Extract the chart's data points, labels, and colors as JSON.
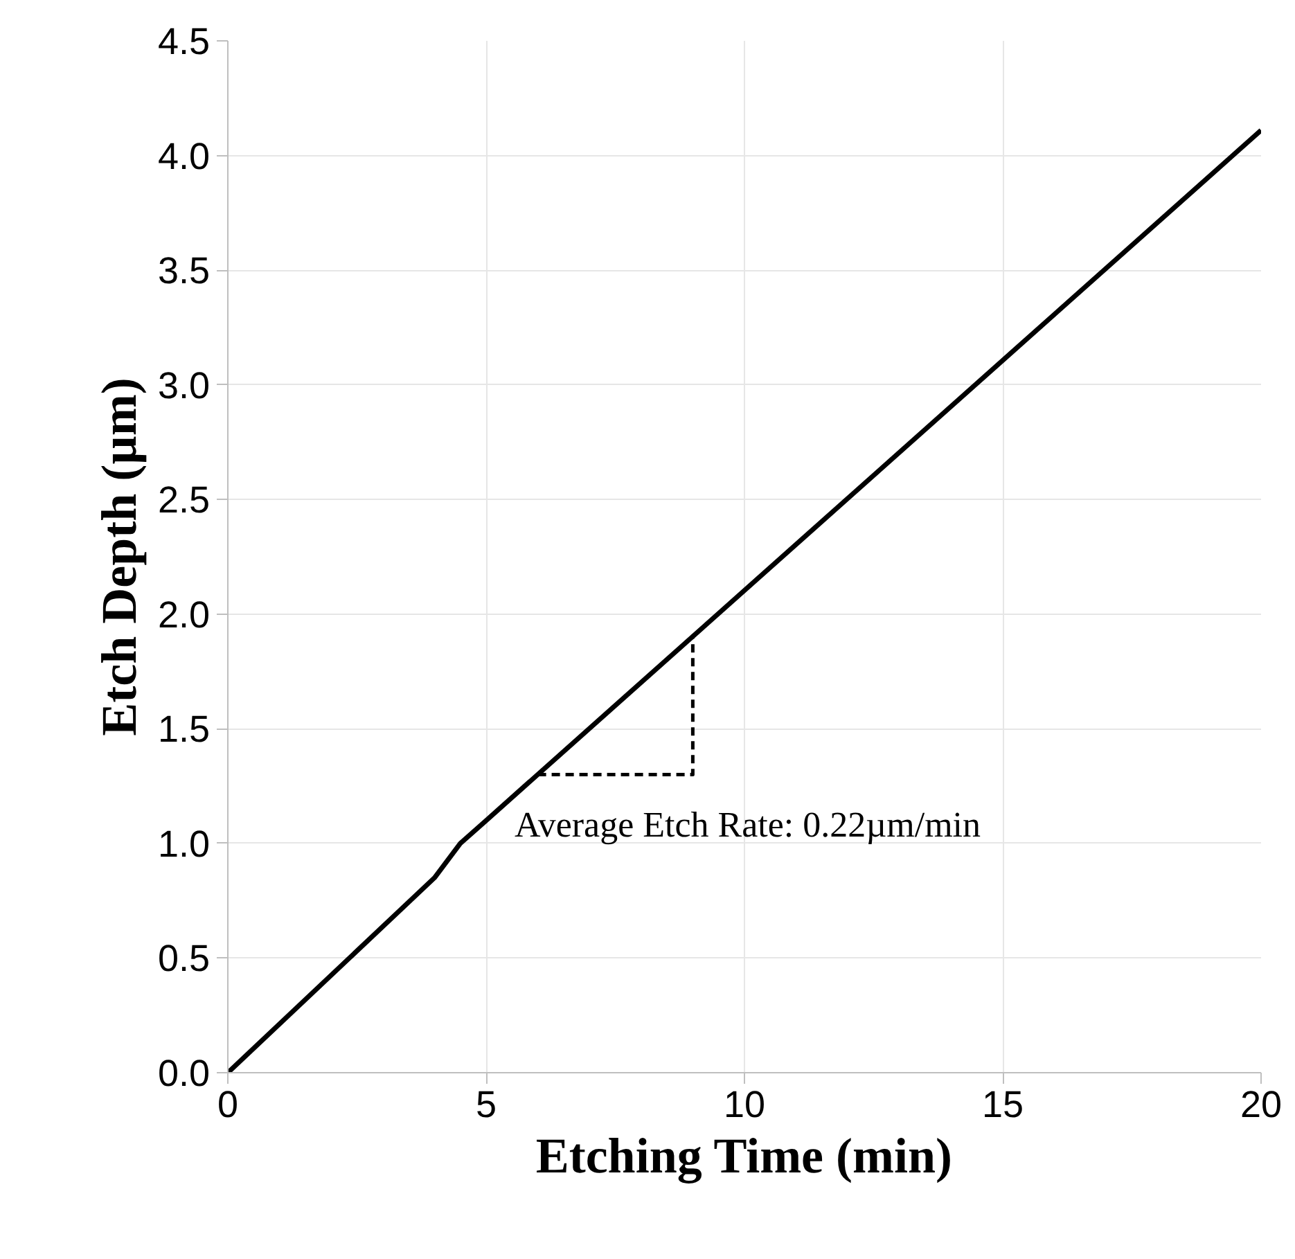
{
  "chart_data": {
    "type": "line",
    "xlabel": "Etching Time (min)",
    "ylabel": "Etch Depth (µm)",
    "series": [
      {
        "color": "#000000",
        "x": [
          0,
          4,
          4.5,
          5,
          20
        ],
        "values": [
          0,
          0.85,
          1.0,
          1.1,
          4.11
        ]
      },
      {
        "type": "line",
        "line_style": "dashed",
        "color": "#000000",
        "x": [
          6,
          9,
          9
        ],
        "values": [
          1.3,
          1.3,
          1.91
        ]
      }
    ],
    "annotations": [
      "Average Etch Rate: 0.22µm/min"
    ],
    "xlim": [
      0,
      20
    ],
    "xticks": [
      0,
      5,
      10,
      15,
      20
    ],
    "ylim": [
      0,
      4.5
    ],
    "yticks": [
      {
        "value": 0,
        "label": "0.0"
      },
      {
        "value": 0.5,
        "label": "0.5"
      },
      {
        "value": 1,
        "label": "1.0"
      },
      {
        "value": 1.5,
        "label": "1.5"
      },
      {
        "value": 2,
        "label": "2.0"
      },
      {
        "value": 2.5,
        "label": "2.5"
      },
      {
        "value": 3,
        "label": "3.0"
      },
      {
        "value": 3.5,
        "label": "3.5"
      },
      {
        "value": 4,
        "label": "4.0"
      },
      {
        "value": 4.5,
        "label": "4.5"
      }
    ],
    "grid": true,
    "marker": "none",
    "line_style": "solid"
  }
}
